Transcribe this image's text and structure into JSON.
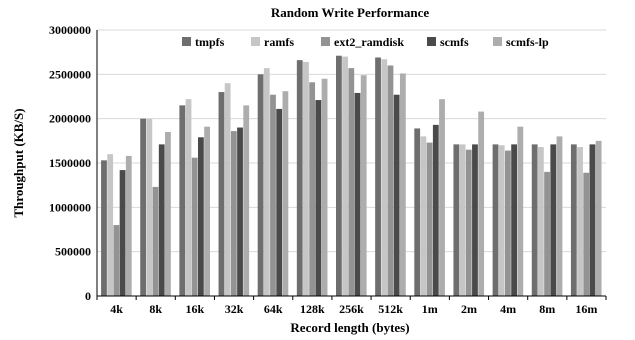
{
  "chart_data": {
    "type": "bar",
    "title": "Random Write Performance",
    "xlabel": "Record length (bytes)",
    "ylabel": "Throughput (KB/S)",
    "ylim": [
      0,
      3000000
    ],
    "yticks": [
      0,
      500000,
      1000000,
      1500000,
      2000000,
      2500000,
      3000000
    ],
    "grid": "horizontal",
    "legend_position": "top",
    "categories": [
      "4k",
      "8k",
      "16k",
      "32k",
      "64k",
      "128k",
      "256k",
      "512k",
      "1m",
      "2m",
      "4m",
      "8m",
      "16m"
    ],
    "series": [
      {
        "name": "tmpfs",
        "color": "#6e6e6e",
        "values": [
          1530000,
          2000000,
          2150000,
          2300000,
          2500000,
          2660000,
          2710000,
          2690000,
          1890000,
          1710000,
          1710000,
          1710000,
          1710000
        ]
      },
      {
        "name": "ramfs",
        "color": "#c6c6c6",
        "values": [
          1600000,
          2000000,
          2220000,
          2400000,
          2570000,
          2640000,
          2700000,
          2670000,
          1800000,
          1710000,
          1700000,
          1680000,
          1680000
        ]
      },
      {
        "name": "ext2_ramdisk",
        "color": "#939393",
        "values": [
          800000,
          1230000,
          1560000,
          1860000,
          2270000,
          2410000,
          2570000,
          2600000,
          1730000,
          1650000,
          1640000,
          1400000,
          1390000
        ]
      },
      {
        "name": "scmfs",
        "color": "#4a4a4a",
        "values": [
          1420000,
          1710000,
          1790000,
          1900000,
          2110000,
          2210000,
          2290000,
          2270000,
          1930000,
          1710000,
          1710000,
          1710000,
          1710000
        ]
      },
      {
        "name": "scmfs-lp",
        "color": "#adadad",
        "values": [
          1580000,
          1850000,
          1910000,
          2150000,
          2310000,
          2450000,
          2490000,
          2510000,
          2220000,
          2080000,
          1910000,
          1800000,
          1750000
        ]
      }
    ]
  }
}
